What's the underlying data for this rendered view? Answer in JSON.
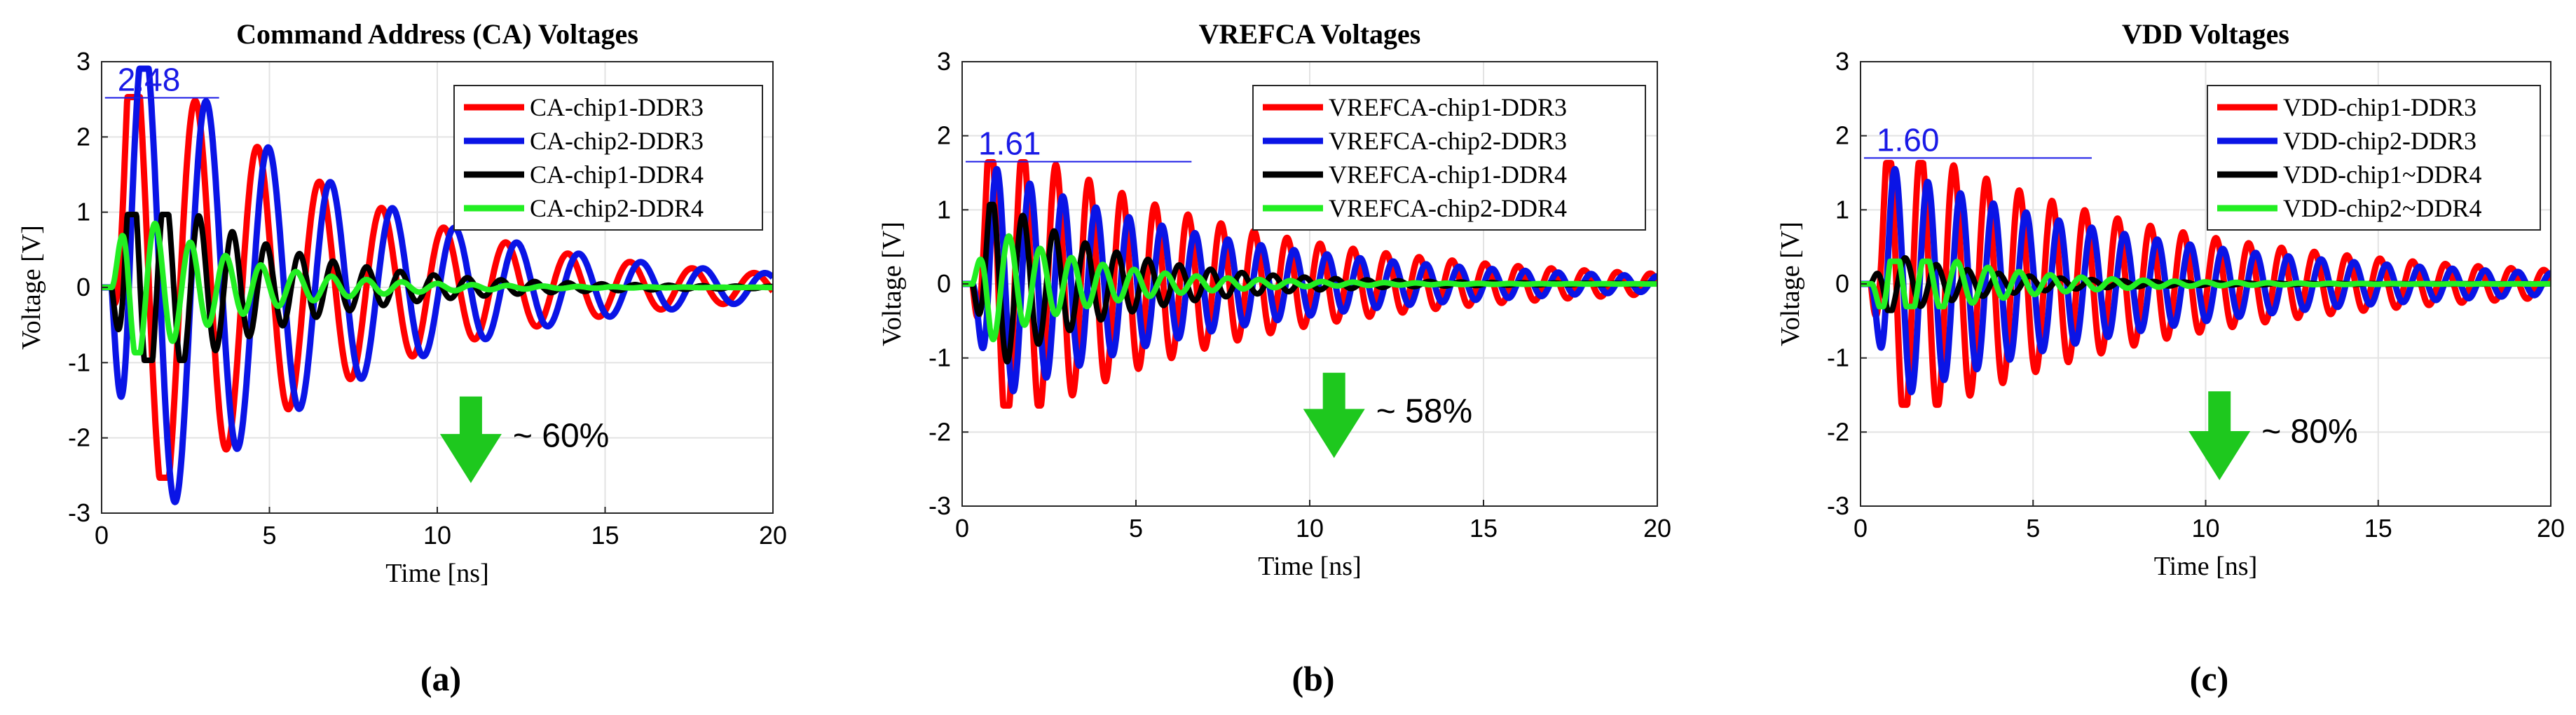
{
  "chart_data": [
    {
      "type": "line",
      "title": "Command Address (CA) Voltages",
      "xlabel": "Time [ns]",
      "ylabel": "Voltage [V]",
      "xlim": [
        0,
        20
      ],
      "ylim": [
        -3,
        3
      ],
      "xticks": [
        0,
        5,
        10,
        15,
        20
      ],
      "yticks": [
        -3,
        -2,
        -1,
        0,
        1,
        2,
        3
      ],
      "grid": true,
      "legend_position": "top-right",
      "panel_label": "(a)",
      "peak_annotation": {
        "label": "2.48",
        "from_t": 0.1,
        "to_t": 3.5,
        "level": 2.52
      },
      "reduction_annotation": {
        "label": "~ 60%",
        "t": 11.0,
        "top": -1.45,
        "bottom": -2.6
      },
      "series": [
        {
          "name": "CA-chip1-DDR3",
          "color": "#ff0000",
          "width": 9,
          "model": {
            "kind": "osc",
            "amp": 2.48,
            "per": 1.85,
            "tau": 6.5,
            "start": 0.3,
            "peak_t": 2.8
          }
        },
        {
          "name": "CA-chip2-DDR3",
          "color": "#0a14e6",
          "width": 9,
          "model": {
            "kind": "osc",
            "amp": 2.85,
            "per": 1.85,
            "tau": 6.5,
            "start": 0.3,
            "peak_t": 2.2,
            "sign": -1
          }
        },
        {
          "name": "CA-chip1-DDR4",
          "color": "#000000",
          "width": 8,
          "model": {
            "kind": "osc",
            "amp": 0.95,
            "per": 1.0,
            "tau": 4.0,
            "start": 0.3,
            "peak_t": 2.9
          }
        },
        {
          "name": "CA-chip2-DDR4",
          "color": "#22ee22",
          "width": 8,
          "model": {
            "kind": "osc",
            "amp": 0.85,
            "per": 1.05,
            "tau": 3.0,
            "start": 0.3,
            "peak_t": 1.6
          }
        }
      ]
    },
    {
      "type": "line",
      "title": "VREFCA Voltages",
      "xlabel": "Time [ns]",
      "ylabel": "Voltage [V]",
      "xlim": [
        0,
        20
      ],
      "ylim": [
        -3,
        3
      ],
      "xticks": [
        0,
        5,
        10,
        15,
        20
      ],
      "yticks": [
        -3,
        -2,
        -1,
        0,
        1,
        2,
        3
      ],
      "grid": true,
      "legend_position": "top-right",
      "panel_label": "(b)",
      "peak_annotation": {
        "label": "1.61",
        "from_t": 0.1,
        "to_t": 6.6,
        "level": 1.65
      },
      "reduction_annotation": {
        "label": "~ 58%",
        "t": 10.7,
        "top": -1.2,
        "bottom": -2.35
      },
      "series": [
        {
          "name": "VREFCA-chip1-DDR3",
          "color": "#ff0000",
          "width": 9,
          "model": {
            "kind": "osc",
            "amp": 1.61,
            "per": 0.95,
            "tau": 7.0,
            "start": 0.3,
            "peak_t": 2.7
          }
        },
        {
          "name": "VREFCA-chip2-DDR3",
          "color": "#0a14e6",
          "width": 9,
          "model": {
            "kind": "osc",
            "amp": 1.55,
            "per": 0.95,
            "tau": 7.0,
            "start": 0.3,
            "peak_t": 1.0
          }
        },
        {
          "name": "VREFCA-chip1-DDR4",
          "color": "#000000",
          "width": 8,
          "model": {
            "kind": "osc",
            "amp": 1.05,
            "per": 0.9,
            "tau": 3.5,
            "start": 0.3,
            "peak_t": 1.3,
            "sign": -1
          }
        },
        {
          "name": "VREFCA-chip2-DDR4",
          "color": "#22ee22",
          "width": 8,
          "model": {
            "kind": "osc",
            "amp": 0.75,
            "per": 0.9,
            "tau": 3.0,
            "start": 0.3,
            "peak_t": 0.9,
            "sign": -1
          }
        }
      ]
    },
    {
      "type": "line",
      "title": "VDD Voltages",
      "xlabel": "Time [ns]",
      "ylabel": "Voltage [V]",
      "xlim": [
        0,
        20
      ],
      "ylim": [
        -3,
        3
      ],
      "xticks": [
        0,
        5,
        10,
        15,
        20
      ],
      "yticks": [
        -3,
        -2,
        -1,
        0,
        1,
        2,
        3
      ],
      "grid": true,
      "legend_position": "top-right",
      "panel_label": "(c)",
      "peak_annotation": {
        "label": "1.60",
        "from_t": 0.1,
        "to_t": 6.7,
        "level": 1.7
      },
      "reduction_annotation": {
        "label": "~ 80%",
        "t": 10.4,
        "top": -1.45,
        "bottom": -2.65
      },
      "series": [
        {
          "name": "VDD-chip1-DDR3",
          "color": "#ff0000",
          "width": 9,
          "model": {
            "kind": "osc",
            "amp": 1.6,
            "per": 0.95,
            "tau": 8.0,
            "start": 0.3,
            "peak_t": 2.7
          }
        },
        {
          "name": "VDD-chip2-DDR3",
          "color": "#0a14e6",
          "width": 9,
          "model": {
            "kind": "osc",
            "amp": 1.55,
            "per": 0.95,
            "tau": 8.0,
            "start": 0.3,
            "peak_t": 1.0
          }
        },
        {
          "name": "VDD-chip1~DDR4",
          "color": "#000000",
          "width": 8,
          "model": {
            "kind": "osc",
            "amp": 0.35,
            "per": 0.9,
            "tau": 3.0,
            "start": 0.3,
            "peak_t": 1.3
          }
        },
        {
          "name": "VDD-chip2~DDR4",
          "color": "#22ee22",
          "width": 8,
          "model": {
            "kind": "osc",
            "amp": 0.3,
            "per": 0.9,
            "tau": 3.0,
            "start": 0.3,
            "peak_t": 2.8
          }
        }
      ]
    }
  ]
}
